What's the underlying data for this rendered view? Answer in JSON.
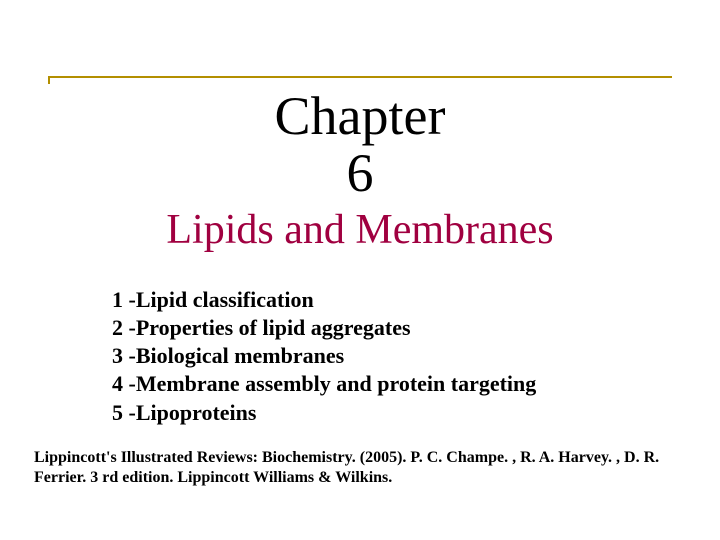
{
  "colors": {
    "background": "#ffffff",
    "rule": "#b38f00",
    "title": "#000000",
    "subtitle": "#a00040",
    "body": "#000000"
  },
  "typography": {
    "family": "Times New Roman",
    "title_fontsize_pt": 40,
    "subtitle_fontsize_pt": 32,
    "topic_fontsize_pt": 17,
    "reference_fontsize_pt": 12
  },
  "title": {
    "line1": "Chapter",
    "line2": "6"
  },
  "subtitle": "Lipids and Membranes",
  "topics": [
    "1 -Lipid classification",
    "2 -Properties of lipid aggregates",
    "3 -Biological membranes",
    "4 -Membrane assembly and protein targeting",
    "5 -Lipoproteins"
  ],
  "reference": "Lippincott's Illustrated Reviews: Biochemistry. (2005). P. C. Champe. , R. A. Harvey. , D. R. Ferrier. 3 rd edition. Lippincott Williams & Wilkins."
}
